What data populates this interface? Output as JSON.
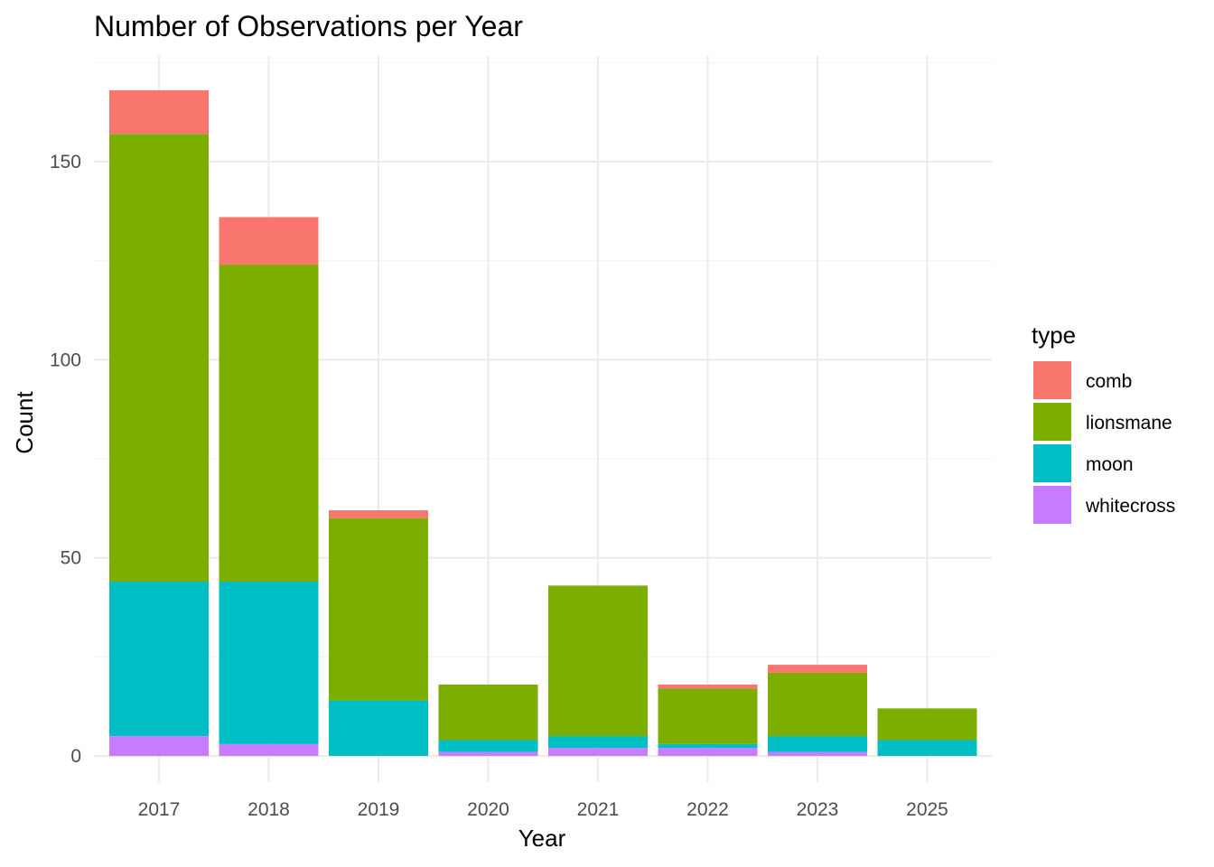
{
  "chart_data": {
    "type": "bar",
    "stacked": true,
    "title": "Number of Observations per Year",
    "xlabel": "Year",
    "ylabel": "Count",
    "categories": [
      "2017",
      "2018",
      "2019",
      "2020",
      "2021",
      "2022",
      "2023",
      "2025"
    ],
    "ylim": [
      0,
      170
    ],
    "yticks": [
      0,
      50,
      100,
      150
    ],
    "grid": true,
    "legend": {
      "title": "type",
      "position": "right"
    },
    "series": [
      {
        "name": "whitecross",
        "color": "#C77CFF",
        "values": [
          5,
          3,
          0,
          1,
          2,
          2,
          1,
          0
        ]
      },
      {
        "name": "moon",
        "color": "#00BFC4",
        "values": [
          39,
          41,
          14,
          3,
          3,
          1,
          4,
          4
        ]
      },
      {
        "name": "lionsmane",
        "color": "#7CAE00",
        "values": [
          113,
          80,
          46,
          14,
          38,
          14,
          16,
          8
        ]
      },
      {
        "name": "comb",
        "color": "#F8766D",
        "values": [
          11,
          12,
          2,
          0,
          0,
          1,
          2,
          0
        ]
      }
    ],
    "legend_order": [
      "comb",
      "lionsmane",
      "moon",
      "whitecross"
    ]
  }
}
